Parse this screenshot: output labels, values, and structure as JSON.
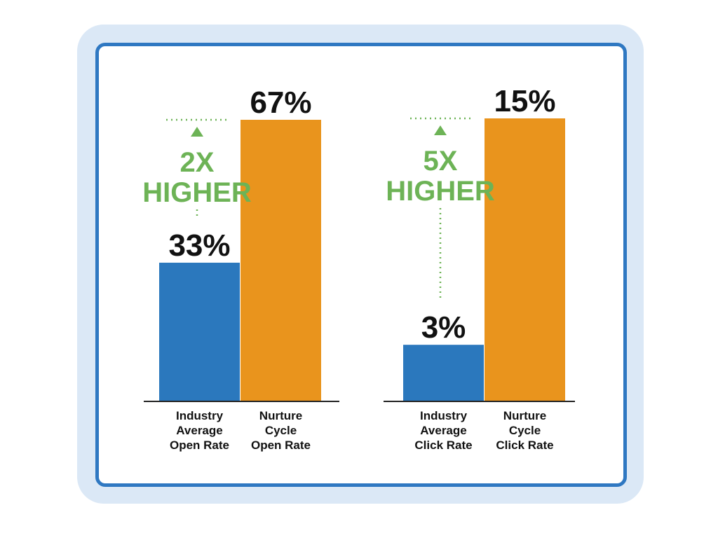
{
  "colors": {
    "frame_outer": "#dbe8f6",
    "frame_border": "#2f78c2",
    "industry_bar": "#2b78bd",
    "nurture_bar": "#e9941d",
    "highlight": "#6db356",
    "axis": "#222222",
    "text": "#111111"
  },
  "chart_data": [
    {
      "type": "bar",
      "categories": [
        [
          "Industry",
          "Average",
          "Open Rate"
        ],
        [
          "Nurture",
          "Cycle",
          "Open Rate"
        ]
      ],
      "values": [
        33,
        67
      ],
      "value_labels": [
        "33%",
        "67%"
      ],
      "comparison": [
        "2X",
        "HIGHER"
      ],
      "ylim": [
        0,
        67
      ]
    },
    {
      "type": "bar",
      "categories": [
        [
          "Industry",
          "Average",
          "Click Rate"
        ],
        [
          "Nurture",
          "Cycle",
          "Click Rate"
        ]
      ],
      "values": [
        3,
        15
      ],
      "value_labels": [
        "3%",
        "15%"
      ],
      "comparison": [
        "5X",
        "HIGHER"
      ],
      "ylim": [
        0,
        15
      ]
    }
  ]
}
